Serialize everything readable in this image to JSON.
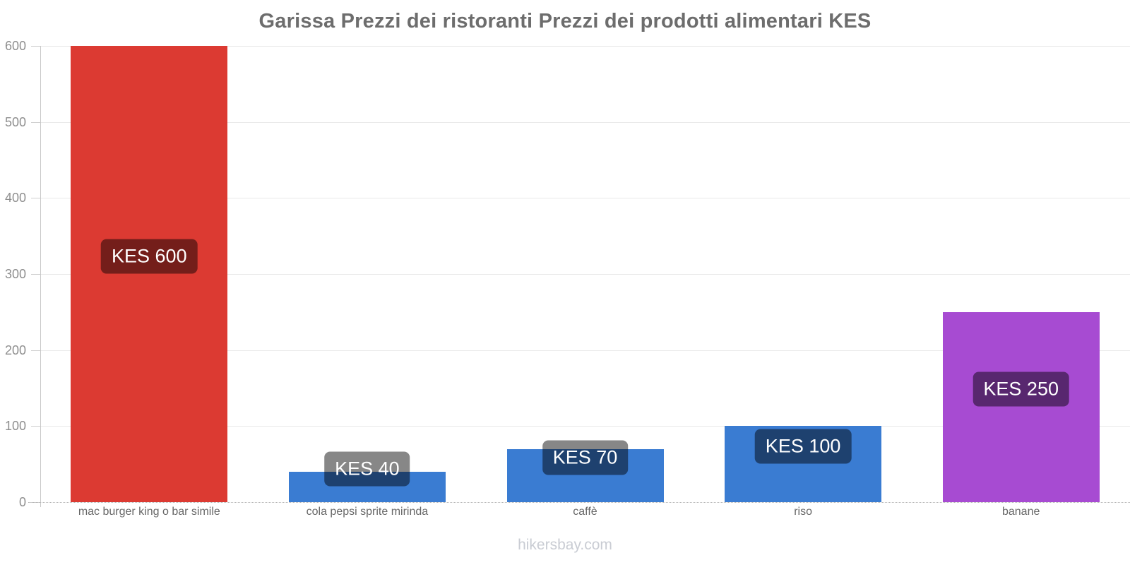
{
  "title": "Garissa Prezzi dei ristoranti Prezzi dei prodotti alimentari KES",
  "watermark": "hikersbay.com",
  "chart_data": {
    "type": "bar",
    "title": "Garissa Prezzi dei ristoranti Prezzi dei prodotti alimentari KES",
    "currency": "KES",
    "categories": [
      "mac burger king o bar simile",
      "cola pepsi sprite mirinda",
      "caffè",
      "riso",
      "banane"
    ],
    "values": [
      600,
      40,
      70,
      100,
      250
    ],
    "bar_labels": [
      "KES 600",
      "KES 40",
      "KES 70",
      "KES 100",
      "KES 250"
    ],
    "bar_colors": [
      "#dc3a32",
      "#3a7cd2",
      "#3a7cd2",
      "#3a7cd2",
      "#a74bd2"
    ],
    "value_badge_bg": "rgba(0,0,0,0.47)",
    "value_badge_text_color": "#ffffff",
    "ylim": [
      0,
      600
    ],
    "yticks": [
      0,
      100,
      200,
      300,
      400,
      500,
      600
    ],
    "grid": "horizontal",
    "legend": "none",
    "xlabel": "",
    "ylabel": ""
  }
}
